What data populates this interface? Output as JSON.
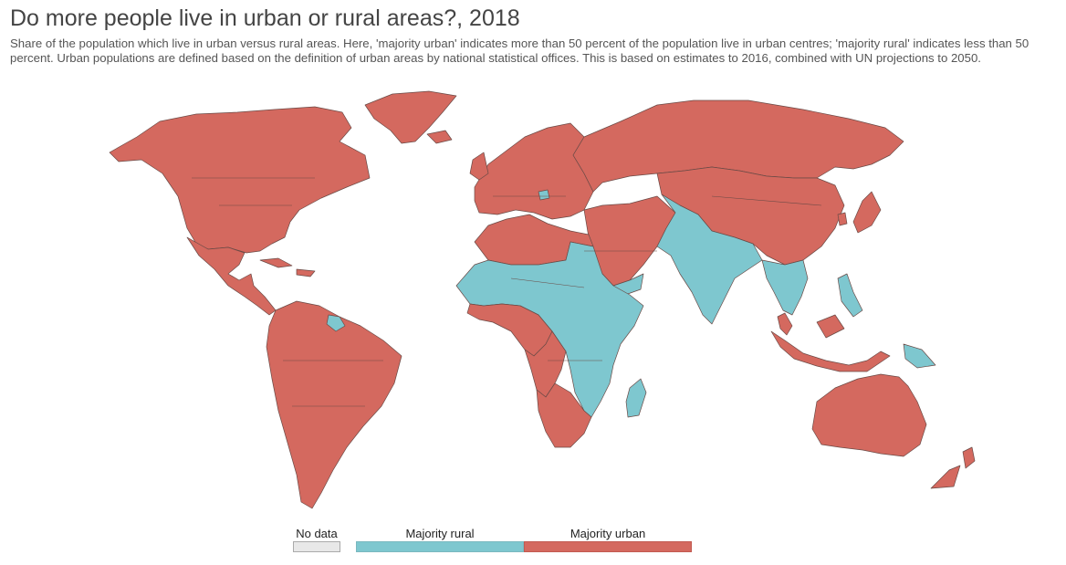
{
  "title": "Do more people live in urban or rural areas?, 2018",
  "subtitle": "Share of the population which live in urban versus rural areas. Here, 'majority urban' indicates more than 50 percent of the population live in urban centres; 'majority rural' indicates less than 50 percent. Urban populations are defined based on the definition of urban areas by national statistical offices. This is based on estimates to 2016, combined with UN projections to 2050.",
  "colors": {
    "urban": "#d4695f",
    "rural": "#7ec7cf",
    "nodata": "#e8e8e8",
    "border": "#6a4a46"
  },
  "legend": {
    "nodata": "No data",
    "rural": "Majority rural",
    "urban": "Majority urban"
  },
  "regions": [
    {
      "name": "North America",
      "category": "urban"
    },
    {
      "name": "Greenland",
      "category": "urban"
    },
    {
      "name": "Central America",
      "category": "urban"
    },
    {
      "name": "South America",
      "category": "urban"
    },
    {
      "name": "Guyana",
      "category": "rural"
    },
    {
      "name": "Europe",
      "category": "urban"
    },
    {
      "name": "Bosnia and Herzegovina",
      "category": "rural"
    },
    {
      "name": "Russia",
      "category": "urban"
    },
    {
      "name": "China",
      "category": "urban"
    },
    {
      "name": "Middle East",
      "category": "urban"
    },
    {
      "name": "North Africa",
      "category": "urban"
    },
    {
      "name": "Sahel and East Africa",
      "category": "rural"
    },
    {
      "name": "Gulf of Guinea coast",
      "category": "urban"
    },
    {
      "name": "Central Africa",
      "category": "urban"
    },
    {
      "name": "Southern Africa",
      "category": "urban"
    },
    {
      "name": "Madagascar",
      "category": "rural"
    },
    {
      "name": "Yemen",
      "category": "rural"
    },
    {
      "name": "South Asia",
      "category": "rural"
    },
    {
      "name": "Indochina",
      "category": "rural"
    },
    {
      "name": "Malaysia",
      "category": "urban"
    },
    {
      "name": "Indonesia",
      "category": "urban"
    },
    {
      "name": "Philippines",
      "category": "rural"
    },
    {
      "name": "Japan",
      "category": "urban"
    },
    {
      "name": "Australia",
      "category": "urban"
    },
    {
      "name": "New Zealand",
      "category": "urban"
    },
    {
      "name": "Papua New Guinea",
      "category": "rural"
    }
  ]
}
